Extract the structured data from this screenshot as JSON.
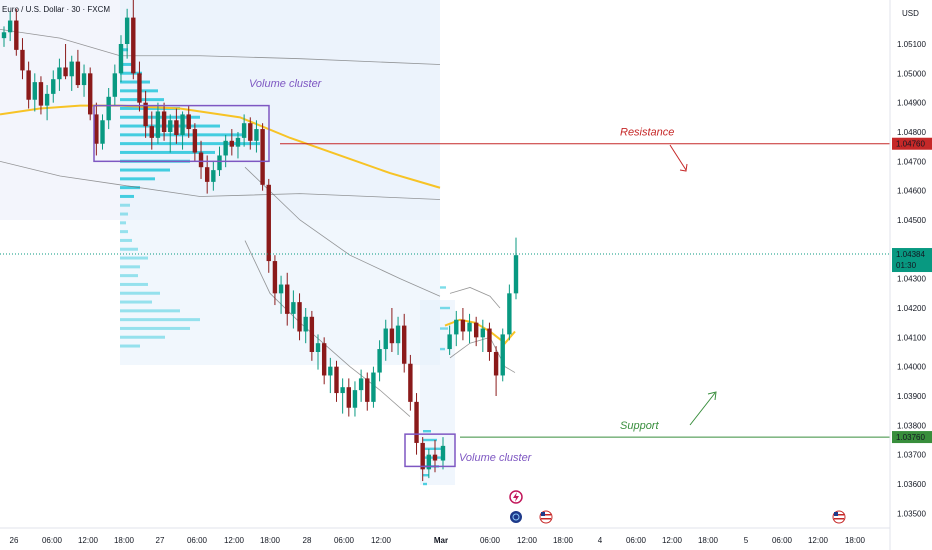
{
  "chart_data": {
    "type": "candlestick",
    "symbol": "Euro / U.S. Dollar · 30 · FXCM",
    "currency": "USD",
    "y_ticks": [
      "1.05100",
      "1.05000",
      "1.04900",
      "1.04800",
      "1.04700",
      "1.04600",
      "1.04500",
      "1.04300",
      "1.04200",
      "1.04100",
      "1.04000",
      "1.03900",
      "1.03800",
      "1.03700",
      "1.03600",
      "1.03500"
    ],
    "x_ticks": [
      "26",
      "06:00",
      "12:00",
      "18:00",
      "27",
      "06:00",
      "12:00",
      "18:00",
      "28",
      "06:00",
      "12:00",
      "Mar",
      "06:00",
      "12:00",
      "18:00",
      "4",
      "06:00",
      "12:00",
      "18:00",
      "5",
      "06:00",
      "12:00",
      "18:00"
    ],
    "ylim": [
      1.0345,
      1.0525
    ],
    "resistance": {
      "label": "Resistance",
      "price": "1.04760",
      "value": 1.0476
    },
    "support": {
      "label": "Support",
      "price": "1.03760",
      "value": 1.0376
    },
    "last_price": {
      "price": "1.04384",
      "countdown": "01:30",
      "value": 1.04384
    },
    "clusters": [
      {
        "label": "Volume cluster",
        "top": 1.0489,
        "bottom": 1.047
      },
      {
        "label": "Volume cluster",
        "top": 1.0377,
        "bottom": 1.0366
      }
    ],
    "ohlc": [
      [
        1.0512,
        1.0516,
        1.0509,
        1.0514
      ],
      [
        1.0514,
        1.0521,
        1.0511,
        1.0518
      ],
      [
        1.0518,
        1.0522,
        1.0506,
        1.0508
      ],
      [
        1.0508,
        1.0512,
        1.0498,
        1.0501
      ],
      [
        1.0501,
        1.0504,
        1.0488,
        1.0491
      ],
      [
        1.0491,
        1.05,
        1.0487,
        1.0497
      ],
      [
        1.0497,
        1.0499,
        1.0486,
        1.0489
      ],
      [
        1.0489,
        1.0496,
        1.0484,
        1.0493
      ],
      [
        1.0493,
        1.0501,
        1.049,
        1.0498
      ],
      [
        1.0498,
        1.0505,
        1.0494,
        1.0502
      ],
      [
        1.0502,
        1.051,
        1.0498,
        1.0499
      ],
      [
        1.0499,
        1.0506,
        1.0494,
        1.0504
      ],
      [
        1.0504,
        1.0508,
        1.0495,
        1.0496
      ],
      [
        1.0496,
        1.0503,
        1.0492,
        1.05
      ],
      [
        1.05,
        1.0502,
        1.0484,
        1.0486
      ],
      [
        1.0486,
        1.049,
        1.0472,
        1.0476
      ],
      [
        1.0476,
        1.0486,
        1.0474,
        1.0484
      ],
      [
        1.0484,
        1.0495,
        1.0481,
        1.0492
      ],
      [
        1.0492,
        1.0503,
        1.0489,
        1.05
      ],
      [
        1.05,
        1.0513,
        1.0497,
        1.051
      ],
      [
        1.051,
        1.0522,
        1.0505,
        1.0519
      ],
      [
        1.0519,
        1.0525,
        1.0498,
        1.05
      ],
      [
        1.05,
        1.0504,
        1.0487,
        1.049
      ],
      [
        1.049,
        1.0494,
        1.0478,
        1.0482
      ],
      [
        1.0482,
        1.0487,
        1.0474,
        1.0478
      ],
      [
        1.0478,
        1.049,
        1.0476,
        1.0487
      ],
      [
        1.0487,
        1.049,
        1.0477,
        1.048
      ],
      [
        1.048,
        1.0486,
        1.0473,
        1.0484
      ],
      [
        1.0484,
        1.0488,
        1.0476,
        1.0479
      ],
      [
        1.0479,
        1.0487,
        1.0474,
        1.0486
      ],
      [
        1.0486,
        1.0489,
        1.0478,
        1.0481
      ],
      [
        1.0481,
        1.0483,
        1.047,
        1.0473
      ],
      [
        1.0473,
        1.0477,
        1.0464,
        1.0468
      ],
      [
        1.0468,
        1.0472,
        1.0459,
        1.0463
      ],
      [
        1.0463,
        1.047,
        1.046,
        1.0467
      ],
      [
        1.0467,
        1.0475,
        1.0465,
        1.0472
      ],
      [
        1.0472,
        1.0479,
        1.0468,
        1.0477
      ],
      [
        1.0477,
        1.0481,
        1.0472,
        1.0475
      ],
      [
        1.0475,
        1.048,
        1.0471,
        1.0478
      ],
      [
        1.0478,
        1.0486,
        1.0475,
        1.0483
      ],
      [
        1.0483,
        1.0485,
        1.0474,
        1.0477
      ],
      [
        1.0477,
        1.0484,
        1.0473,
        1.0481
      ],
      [
        1.0481,
        1.0483,
        1.046,
        1.0462
      ],
      [
        1.0462,
        1.0464,
        1.0432,
        1.0436
      ],
      [
        1.0436,
        1.0438,
        1.0421,
        1.0425
      ],
      [
        1.0425,
        1.0431,
        1.0418,
        1.0428
      ],
      [
        1.0428,
        1.0432,
        1.0414,
        1.0418
      ],
      [
        1.0418,
        1.0426,
        1.0413,
        1.0422
      ],
      [
        1.0422,
        1.0425,
        1.0409,
        1.0412
      ],
      [
        1.0412,
        1.042,
        1.0408,
        1.0417
      ],
      [
        1.0417,
        1.0419,
        1.0402,
        1.0405
      ],
      [
        1.0405,
        1.0411,
        1.0399,
        1.0408
      ],
      [
        1.0408,
        1.041,
        1.0394,
        1.0397
      ],
      [
        1.0397,
        1.0403,
        1.0391,
        1.04
      ],
      [
        1.04,
        1.0402,
        1.0388,
        1.0391
      ],
      [
        1.0391,
        1.0396,
        1.0384,
        1.0393
      ],
      [
        1.0393,
        1.0396,
        1.0383,
        1.0386
      ],
      [
        1.0386,
        1.0395,
        1.0383,
        1.0392
      ],
      [
        1.0392,
        1.0399,
        1.0388,
        1.0396
      ],
      [
        1.0396,
        1.0398,
        1.0385,
        1.0388
      ],
      [
        1.0388,
        1.04,
        1.0386,
        1.0398
      ],
      [
        1.0398,
        1.0409,
        1.0395,
        1.0406
      ],
      [
        1.0406,
        1.0416,
        1.0402,
        1.0413
      ],
      [
        1.0413,
        1.042,
        1.0405,
        1.0408
      ],
      [
        1.0408,
        1.0417,
        1.0404,
        1.0414
      ],
      [
        1.0414,
        1.0418,
        1.0398,
        1.0401
      ],
      [
        1.0401,
        1.0404,
        1.0385,
        1.0388
      ],
      [
        1.0388,
        1.0391,
        1.037,
        1.0374
      ],
      [
        1.0374,
        1.0376,
        1.0361,
        1.0365
      ],
      [
        1.0365,
        1.0372,
        1.0362,
        1.037
      ],
      [
        1.037,
        1.0375,
        1.0364,
        1.0368
      ],
      [
        1.0368,
        1.0376,
        1.0365,
        1.0373
      ],
      [
        1.0406,
        1.0414,
        1.0404,
        1.0411
      ],
      [
        1.0411,
        1.0419,
        1.0407,
        1.0416
      ],
      [
        1.0416,
        1.042,
        1.0409,
        1.0412
      ],
      [
        1.0412,
        1.0418,
        1.0408,
        1.0415
      ],
      [
        1.0415,
        1.0417,
        1.0407,
        1.041
      ],
      [
        1.041,
        1.0416,
        1.0405,
        1.0413
      ],
      [
        1.0413,
        1.0415,
        1.0402,
        1.0405
      ],
      [
        1.0405,
        1.0407,
        1.039,
        1.0397
      ],
      [
        1.0397,
        1.0413,
        1.0395,
        1.0411
      ],
      [
        1.0411,
        1.0428,
        1.0409,
        1.0425
      ],
      [
        1.0425,
        1.0444,
        1.0423,
        1.0438
      ]
    ],
    "series": [
      {
        "name": "Volume profile"
      },
      {
        "name": "Moving average"
      },
      {
        "name": "Envelope bands"
      }
    ],
    "colors": {
      "up": "#089981",
      "down": "#8b1a1a",
      "resistance": "#c62828",
      "support": "#388e3c",
      "ma": "#f7c325",
      "cluster_border": "#7e57c2",
      "cluster_text": "#7e57c2",
      "profile": "#26c6da"
    }
  },
  "events": [
    {
      "name": "flash-event-icon"
    },
    {
      "name": "us-flag-event-icon"
    }
  ]
}
